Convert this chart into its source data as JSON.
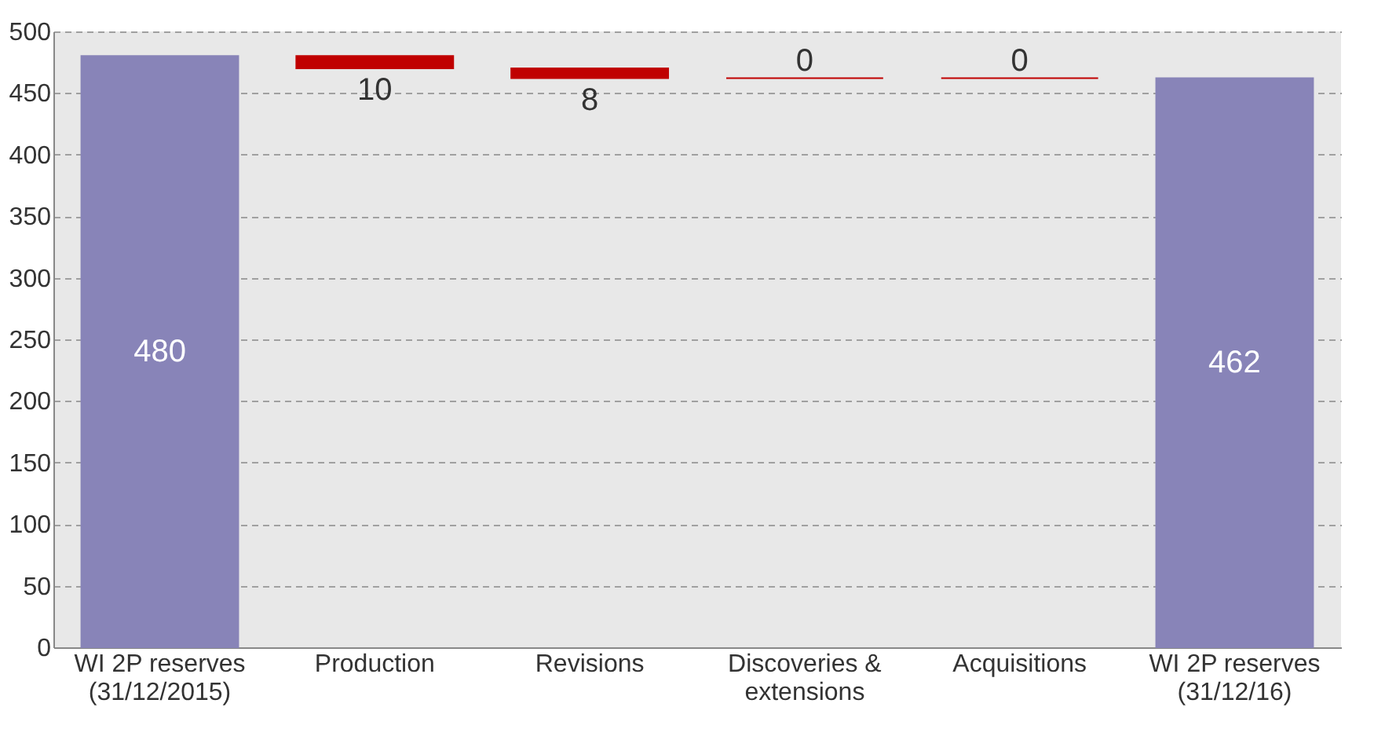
{
  "chart_data": {
    "type": "bar",
    "categories": [
      "WI 2P reserves (31/12/2015)",
      "Production",
      "Revisions",
      "Discoveries & extensions",
      "Acquisitions",
      "WI 2P reserves (31/12/16)"
    ],
    "values": [
      480,
      -10,
      -8,
      0,
      0,
      462
    ],
    "base": [
      0,
      480,
      470,
      462,
      462,
      0
    ],
    "colors": [
      "#8884b8",
      "#c00000",
      "#c00000",
      "#c00000",
      "#c00000",
      "#8884b8"
    ],
    "value_labels": [
      "480",
      "10",
      "8",
      "0",
      "0",
      "462"
    ],
    "ylim": [
      0,
      500
    ],
    "yticks": [
      0,
      50,
      100,
      150,
      200,
      250,
      300,
      350,
      400,
      450,
      500
    ],
    "grid": "y"
  }
}
